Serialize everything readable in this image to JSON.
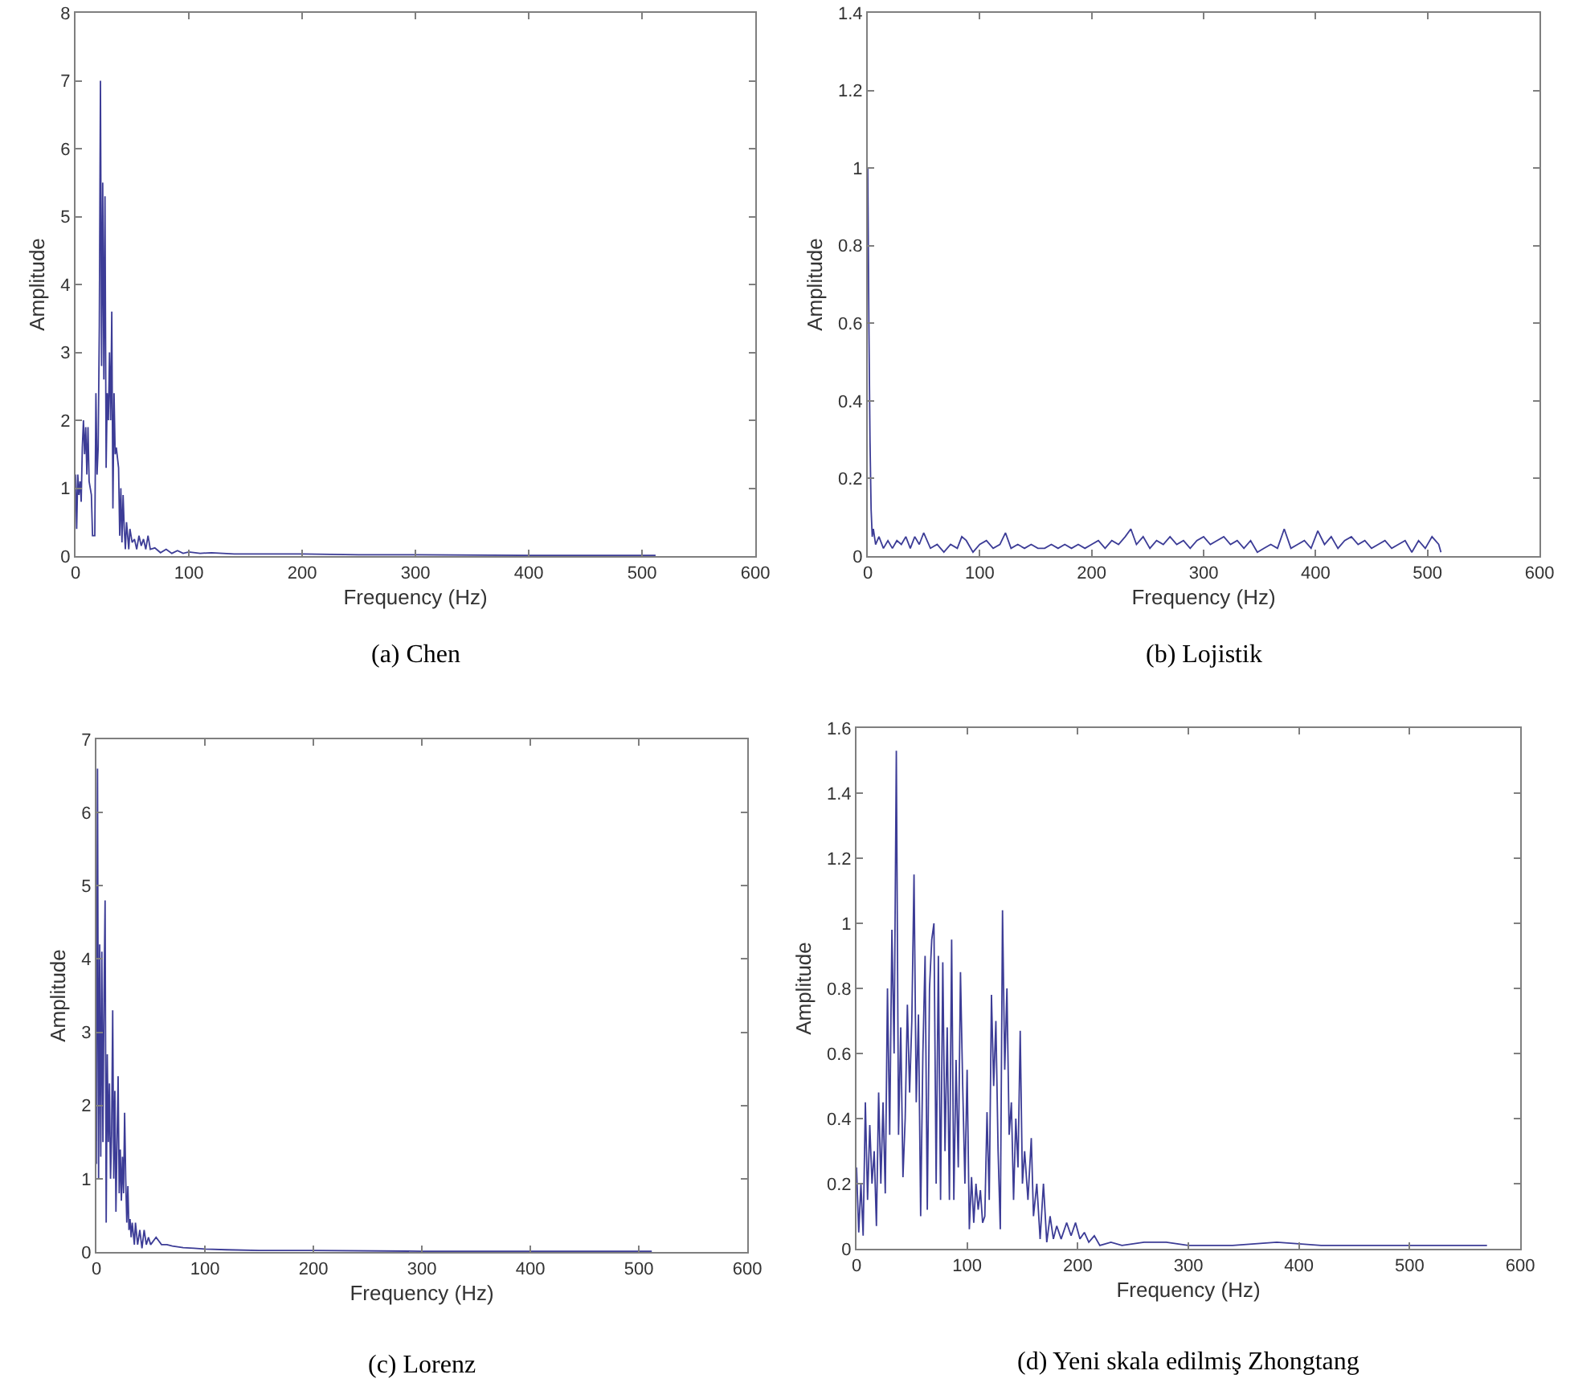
{
  "chart_data": [
    {
      "type": "line",
      "title": "(a) Chen",
      "xlabel": "Frequency (Hz)",
      "ylabel": "Amplitude",
      "xlim": [
        0,
        600
      ],
      "ylim": [
        0,
        8
      ],
      "xticks": [
        0,
        100,
        200,
        300,
        400,
        500,
        600
      ],
      "yticks": [
        0,
        1,
        2,
        3,
        4,
        5,
        6,
        7,
        8
      ],
      "marker": "none",
      "line_style": "solid",
      "series": [
        {
          "color": "#3c3c96",
          "x": [
            0,
            1,
            2,
            3,
            4,
            5,
            6,
            7,
            8,
            9,
            10,
            11,
            12,
            14,
            15,
            17,
            18,
            19,
            20,
            21,
            22,
            23,
            24,
            25,
            26,
            27,
            28,
            29,
            30,
            31,
            32,
            33,
            34,
            35,
            36,
            38,
            39,
            40,
            41,
            42,
            43,
            44,
            45,
            47,
            48,
            50,
            52,
            54,
            56,
            58,
            60,
            62,
            64,
            66,
            70,
            75,
            80,
            85,
            90,
            95,
            100,
            110,
            120,
            140,
            160,
            180,
            200,
            250,
            300,
            400,
            512
          ],
          "values": [
            1.2,
            0.4,
            1.2,
            0.9,
            1.1,
            0.8,
            1.6,
            2.0,
            1.5,
            1.9,
            1.2,
            1.9,
            1.1,
            0.9,
            0.3,
            0.3,
            2.4,
            1.2,
            1.6,
            3.4,
            7.0,
            2.8,
            5.5,
            2.6,
            5.3,
            1.3,
            2.4,
            2.0,
            3.0,
            2.0,
            3.6,
            0.7,
            2.4,
            1.5,
            1.6,
            1.3,
            0.3,
            1.0,
            0.2,
            0.9,
            0.4,
            0.1,
            0.5,
            0.1,
            0.4,
            0.2,
            0.25,
            0.1,
            0.3,
            0.15,
            0.25,
            0.1,
            0.3,
            0.1,
            0.12,
            0.05,
            0.1,
            0.04,
            0.08,
            0.04,
            0.06,
            0.04,
            0.05,
            0.03,
            0.03,
            0.03,
            0.03,
            0.02,
            0.02,
            0.01,
            0.01
          ]
        }
      ]
    },
    {
      "type": "line",
      "title": "(b) Lojistik",
      "xlabel": "Frequency (Hz)",
      "ylabel": "Amplitude",
      "xlim": [
        0,
        600
      ],
      "ylim": [
        0,
        1.4
      ],
      "xticks": [
        0,
        100,
        200,
        300,
        400,
        500,
        600
      ],
      "yticks": [
        0,
        0.2,
        0.4,
        0.6,
        0.8,
        1,
        1.2,
        1.4
      ],
      "marker": "none",
      "line_style": "solid",
      "series": [
        {
          "color": "#3c3c96",
          "x": [
            0,
            1,
            2,
            3,
            4,
            5,
            7,
            10,
            14,
            18,
            22,
            26,
            30,
            34,
            38,
            42,
            46,
            50,
            56,
            62,
            68,
            74,
            80,
            84,
            88,
            94,
            100,
            106,
            112,
            118,
            123,
            128,
            134,
            140,
            146,
            152,
            158,
            164,
            170,
            176,
            182,
            188,
            194,
            200,
            206,
            212,
            218,
            224,
            230,
            235,
            240,
            246,
            252,
            258,
            264,
            270,
            276,
            282,
            288,
            294,
            300,
            306,
            312,
            318,
            324,
            330,
            336,
            342,
            348,
            354,
            360,
            366,
            372,
            378,
            384,
            390,
            396,
            402,
            408,
            414,
            420,
            426,
            432,
            438,
            444,
            450,
            456,
            462,
            468,
            474,
            480,
            486,
            492,
            498,
            504,
            510,
            512
          ],
          "values": [
            1.0,
            0.6,
            0.3,
            0.12,
            0.05,
            0.07,
            0.03,
            0.05,
            0.02,
            0.04,
            0.02,
            0.04,
            0.03,
            0.05,
            0.02,
            0.05,
            0.03,
            0.06,
            0.02,
            0.03,
            0.01,
            0.03,
            0.02,
            0.05,
            0.04,
            0.01,
            0.03,
            0.04,
            0.02,
            0.03,
            0.06,
            0.02,
            0.03,
            0.02,
            0.03,
            0.02,
            0.02,
            0.03,
            0.02,
            0.03,
            0.02,
            0.03,
            0.02,
            0.03,
            0.04,
            0.02,
            0.04,
            0.03,
            0.05,
            0.07,
            0.03,
            0.05,
            0.02,
            0.04,
            0.03,
            0.05,
            0.03,
            0.04,
            0.02,
            0.04,
            0.05,
            0.03,
            0.04,
            0.05,
            0.03,
            0.04,
            0.02,
            0.04,
            0.01,
            0.02,
            0.03,
            0.02,
            0.07,
            0.02,
            0.03,
            0.04,
            0.02,
            0.065,
            0.03,
            0.05,
            0.02,
            0.04,
            0.05,
            0.03,
            0.04,
            0.02,
            0.03,
            0.04,
            0.02,
            0.03,
            0.04,
            0.01,
            0.04,
            0.02,
            0.05,
            0.03,
            0.01
          ]
        }
      ]
    },
    {
      "type": "line",
      "title": "(c) Lorenz",
      "xlabel": "Frequency (Hz)",
      "ylabel": "Amplitude",
      "xlim": [
        0,
        600
      ],
      "ylim": [
        0,
        7
      ],
      "xticks": [
        0,
        100,
        200,
        300,
        400,
        500,
        600
      ],
      "yticks": [
        0,
        1,
        2,
        3,
        4,
        5,
        6,
        7
      ],
      "marker": "none",
      "line_style": "solid",
      "series": [
        {
          "color": "#3c3c96",
          "x": [
            0,
            1,
            2,
            3,
            4,
            5,
            6,
            7,
            8,
            9,
            10,
            11,
            12,
            13,
            14,
            15,
            16,
            17,
            18,
            19,
            20,
            21,
            22,
            23,
            24,
            25,
            26,
            27,
            28,
            29,
            30,
            31,
            32,
            33,
            35,
            36,
            38,
            40,
            42,
            44,
            46,
            48,
            50,
            55,
            60,
            65,
            70,
            80,
            90,
            100,
            120,
            150,
            200,
            300,
            400,
            512
          ],
          "values": [
            1.2,
            6.6,
            1.0,
            4.2,
            1.3,
            4.1,
            1.5,
            3.5,
            4.8,
            0.4,
            2.7,
            1.5,
            2.3,
            1.0,
            1.6,
            3.3,
            1.0,
            2.2,
            0.55,
            1.5,
            2.4,
            0.8,
            1.4,
            0.7,
            1.3,
            0.8,
            1.9,
            1.0,
            0.4,
            0.9,
            0.3,
            0.45,
            0.2,
            0.4,
            0.1,
            0.4,
            0.1,
            0.3,
            0.05,
            0.3,
            0.1,
            0.2,
            0.1,
            0.2,
            0.1,
            0.1,
            0.08,
            0.06,
            0.05,
            0.04,
            0.03,
            0.02,
            0.02,
            0.01,
            0.01,
            0.01
          ]
        }
      ]
    },
    {
      "type": "line",
      "title": "(d) Yeni skala edilmiş Zhongtang",
      "xlabel": "Frequency (Hz)",
      "ylabel": "Amplitude",
      "xlim": [
        0,
        600
      ],
      "ylim": [
        0,
        1.6
      ],
      "xticks": [
        0,
        100,
        200,
        300,
        400,
        500,
        600
      ],
      "yticks": [
        0,
        0.2,
        0.4,
        0.6,
        0.8,
        1,
        1.2,
        1.4,
        1.6
      ],
      "marker": "none",
      "line_style": "solid",
      "series": [
        {
          "color": "#3c3c96",
          "x": [
            0,
            2,
            4,
            6,
            8,
            10,
            12,
            14,
            16,
            18,
            20,
            22,
            24,
            26,
            28,
            30,
            32,
            34,
            36,
            38,
            40,
            42,
            44,
            46,
            48,
            50,
            52,
            54,
            56,
            58,
            60,
            62,
            64,
            66,
            68,
            70,
            72,
            74,
            76,
            78,
            80,
            82,
            84,
            86,
            88,
            90,
            92,
            94,
            96,
            98,
            100,
            102,
            104,
            106,
            108,
            110,
            112,
            114,
            116,
            118,
            120,
            122,
            124,
            126,
            128,
            130,
            132,
            134,
            136,
            138,
            140,
            142,
            144,
            146,
            148,
            150,
            152,
            155,
            158,
            160,
            163,
            166,
            169,
            172,
            175,
            178,
            181,
            185,
            190,
            194,
            198,
            202,
            206,
            210,
            215,
            220,
            230,
            240,
            260,
            280,
            300,
            340,
            380,
            420,
            460,
            500,
            550,
            570
          ],
          "values": [
            0.25,
            0.05,
            0.2,
            0.04,
            0.45,
            0.15,
            0.38,
            0.2,
            0.3,
            0.07,
            0.48,
            0.2,
            0.45,
            0.17,
            0.8,
            0.35,
            0.98,
            0.6,
            1.53,
            0.35,
            0.68,
            0.22,
            0.4,
            0.75,
            0.48,
            0.7,
            1.15,
            0.45,
            0.72,
            0.1,
            0.6,
            0.9,
            0.12,
            0.8,
            0.95,
            1.0,
            0.2,
            0.9,
            0.15,
            0.88,
            0.3,
            0.68,
            0.15,
            0.95,
            0.15,
            0.58,
            0.25,
            0.85,
            0.5,
            0.2,
            0.55,
            0.06,
            0.22,
            0.08,
            0.2,
            0.12,
            0.18,
            0.08,
            0.1,
            0.42,
            0.15,
            0.78,
            0.5,
            0.7,
            0.3,
            0.06,
            1.04,
            0.55,
            0.8,
            0.35,
            0.45,
            0.15,
            0.4,
            0.25,
            0.67,
            0.2,
            0.3,
            0.15,
            0.34,
            0.1,
            0.2,
            0.03,
            0.2,
            0.02,
            0.1,
            0.03,
            0.07,
            0.03,
            0.08,
            0.04,
            0.08,
            0.03,
            0.05,
            0.02,
            0.04,
            0.01,
            0.02,
            0.01,
            0.02,
            0.02,
            0.01,
            0.01,
            0.02,
            0.01,
            0.01,
            0.01,
            0.01,
            0.01
          ]
        }
      ]
    }
  ]
}
